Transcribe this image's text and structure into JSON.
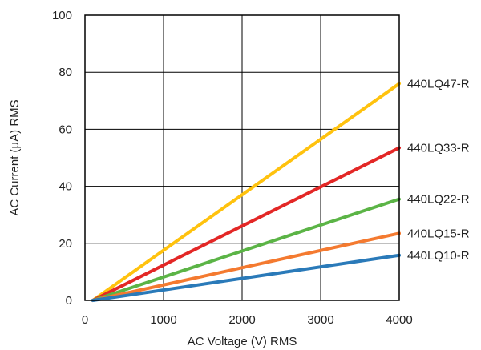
{
  "chart_data": {
    "type": "line",
    "xlabel": "AC Voltage (V) RMS",
    "ylabel": "AC Current (µA) RMS",
    "xlim": [
      0,
      4000
    ],
    "ylim": [
      0,
      100
    ],
    "x_ticks": [
      0,
      1000,
      2000,
      3000,
      4000
    ],
    "y_ticks": [
      0,
      20,
      40,
      60,
      80,
      100
    ],
    "grid": true,
    "legend": "direct labels at right end of lines",
    "series": [
      {
        "name": "440LQ47-R",
        "color": "#FFC20E",
        "x": [
          100,
          4000
        ],
        "y": [
          0,
          76
        ]
      },
      {
        "name": "440LQ33-R",
        "color": "#E32726",
        "x": [
          100,
          4000
        ],
        "y": [
          0,
          53.5
        ]
      },
      {
        "name": "440LQ22-R",
        "color": "#5BB446",
        "x": [
          100,
          4000
        ],
        "y": [
          0,
          35.5
        ]
      },
      {
        "name": "440LQ15-R",
        "color": "#F47A30",
        "x": [
          100,
          4000
        ],
        "y": [
          0,
          23.5
        ]
      },
      {
        "name": "440LQ10-R",
        "color": "#2A7AB9",
        "x": [
          100,
          4000
        ],
        "y": [
          0,
          15.8
        ]
      }
    ]
  }
}
